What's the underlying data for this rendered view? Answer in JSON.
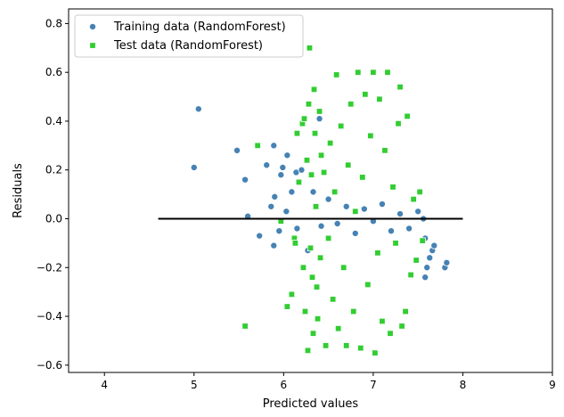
{
  "chart_data": {
    "type": "scatter",
    "title": "",
    "xlabel": "Predicted values",
    "ylabel": "Residuals",
    "xlim": [
      3.6,
      9.0
    ],
    "ylim": [
      -0.63,
      0.86
    ],
    "xticks": [
      4,
      5,
      6,
      7,
      8,
      9
    ],
    "yticks": [
      -0.6,
      -0.4,
      -0.2,
      0.0,
      0.2,
      0.4,
      0.6,
      0.8
    ],
    "xtick_labels": [
      "4",
      "5",
      "6",
      "7",
      "8",
      "9"
    ],
    "ytick_labels": [
      "−0.6",
      "−0.4",
      "−0.2",
      "0.0",
      "0.2",
      "0.4",
      "0.6",
      "0.8"
    ],
    "grid": false,
    "legend_position": "top-left",
    "reference_line": {
      "y": 0,
      "x_from": 4.6,
      "x_to": 8.0,
      "color": "#000000"
    },
    "series": [
      {
        "name": "Training data (RandomForest)",
        "marker": "circle",
        "color": "#4682b4",
        "points": [
          [
            5.05,
            0.45
          ],
          [
            5.0,
            0.21
          ],
          [
            5.48,
            0.28
          ],
          [
            5.57,
            0.16
          ],
          [
            5.6,
            0.01
          ],
          [
            5.73,
            -0.07
          ],
          [
            5.81,
            0.22
          ],
          [
            5.86,
            0.05
          ],
          [
            5.89,
            -0.11
          ],
          [
            5.89,
            0.3
          ],
          [
            5.9,
            0.09
          ],
          [
            5.95,
            -0.05
          ],
          [
            5.97,
            0.18
          ],
          [
            5.99,
            0.21
          ],
          [
            6.03,
            0.03
          ],
          [
            6.04,
            0.26
          ],
          [
            6.09,
            0.11
          ],
          [
            6.14,
            0.19
          ],
          [
            6.15,
            -0.04
          ],
          [
            6.2,
            0.2
          ],
          [
            6.27,
            -0.13
          ],
          [
            6.33,
            0.11
          ],
          [
            6.4,
            0.41
          ],
          [
            6.42,
            -0.03
          ],
          [
            6.5,
            0.08
          ],
          [
            6.6,
            -0.02
          ],
          [
            6.7,
            0.05
          ],
          [
            6.8,
            -0.06
          ],
          [
            6.9,
            0.04
          ],
          [
            7.0,
            -0.01
          ],
          [
            7.1,
            0.06
          ],
          [
            7.2,
            -0.05
          ],
          [
            7.3,
            0.02
          ],
          [
            7.4,
            -0.04
          ],
          [
            7.5,
            0.03
          ],
          [
            7.58,
            -0.24
          ],
          [
            7.6,
            -0.2
          ],
          [
            7.63,
            -0.16
          ],
          [
            7.66,
            -0.13
          ],
          [
            7.68,
            -0.11
          ],
          [
            7.56,
            0.0
          ],
          [
            7.8,
            -0.2
          ],
          [
            7.82,
            -0.18
          ],
          [
            7.58,
            -0.08
          ]
        ]
      },
      {
        "name": "Test data (RandomForest)",
        "marker": "square",
        "color": "#32cd32",
        "points": [
          [
            5.57,
            -0.44
          ],
          [
            5.71,
            0.3
          ],
          [
            5.97,
            -0.01
          ],
          [
            6.04,
            -0.36
          ],
          [
            6.09,
            -0.31
          ],
          [
            6.12,
            -0.08
          ],
          [
            6.13,
            -0.1
          ],
          [
            6.15,
            0.35
          ],
          [
            6.17,
            0.15
          ],
          [
            6.21,
            0.39
          ],
          [
            6.22,
            -0.2
          ],
          [
            6.23,
            0.41
          ],
          [
            6.24,
            -0.38
          ],
          [
            6.26,
            0.24
          ],
          [
            6.27,
            -0.54
          ],
          [
            6.28,
            0.47
          ],
          [
            6.29,
            0.7
          ],
          [
            6.3,
            -0.12
          ],
          [
            6.31,
            0.18
          ],
          [
            6.32,
            -0.24
          ],
          [
            6.33,
            -0.47
          ],
          [
            6.34,
            0.53
          ],
          [
            6.35,
            0.35
          ],
          [
            6.36,
            0.05
          ],
          [
            6.37,
            -0.28
          ],
          [
            6.38,
            -0.41
          ],
          [
            6.4,
            0.44
          ],
          [
            6.41,
            -0.16
          ],
          [
            6.42,
            0.26
          ],
          [
            6.45,
            0.19
          ],
          [
            6.47,
            -0.52
          ],
          [
            6.5,
            -0.08
          ],
          [
            6.52,
            0.31
          ],
          [
            6.55,
            -0.33
          ],
          [
            6.57,
            0.11
          ],
          [
            6.59,
            0.59
          ],
          [
            6.61,
            -0.45
          ],
          [
            6.64,
            0.38
          ],
          [
            6.67,
            -0.2
          ],
          [
            6.7,
            -0.52
          ],
          [
            6.72,
            0.22
          ],
          [
            6.75,
            0.47
          ],
          [
            6.78,
            -0.38
          ],
          [
            6.8,
            0.03
          ],
          [
            6.83,
            0.6
          ],
          [
            6.86,
            -0.53
          ],
          [
            6.88,
            0.17
          ],
          [
            6.91,
            0.51
          ],
          [
            6.94,
            -0.27
          ],
          [
            6.97,
            0.34
          ],
          [
            7.0,
            0.6
          ],
          [
            7.02,
            -0.55
          ],
          [
            7.05,
            -0.14
          ],
          [
            7.07,
            0.49
          ],
          [
            7.1,
            -0.42
          ],
          [
            7.13,
            0.28
          ],
          [
            7.16,
            0.6
          ],
          [
            7.19,
            -0.47
          ],
          [
            7.22,
            0.13
          ],
          [
            7.25,
            -0.1
          ],
          [
            7.28,
            0.39
          ],
          [
            7.3,
            0.54
          ],
          [
            7.32,
            -0.44
          ],
          [
            7.36,
            -0.38
          ],
          [
            7.38,
            0.42
          ],
          [
            7.42,
            -0.23
          ],
          [
            7.45,
            0.08
          ],
          [
            7.48,
            -0.17
          ],
          [
            7.52,
            0.11
          ],
          [
            7.55,
            -0.09
          ]
        ]
      }
    ]
  }
}
